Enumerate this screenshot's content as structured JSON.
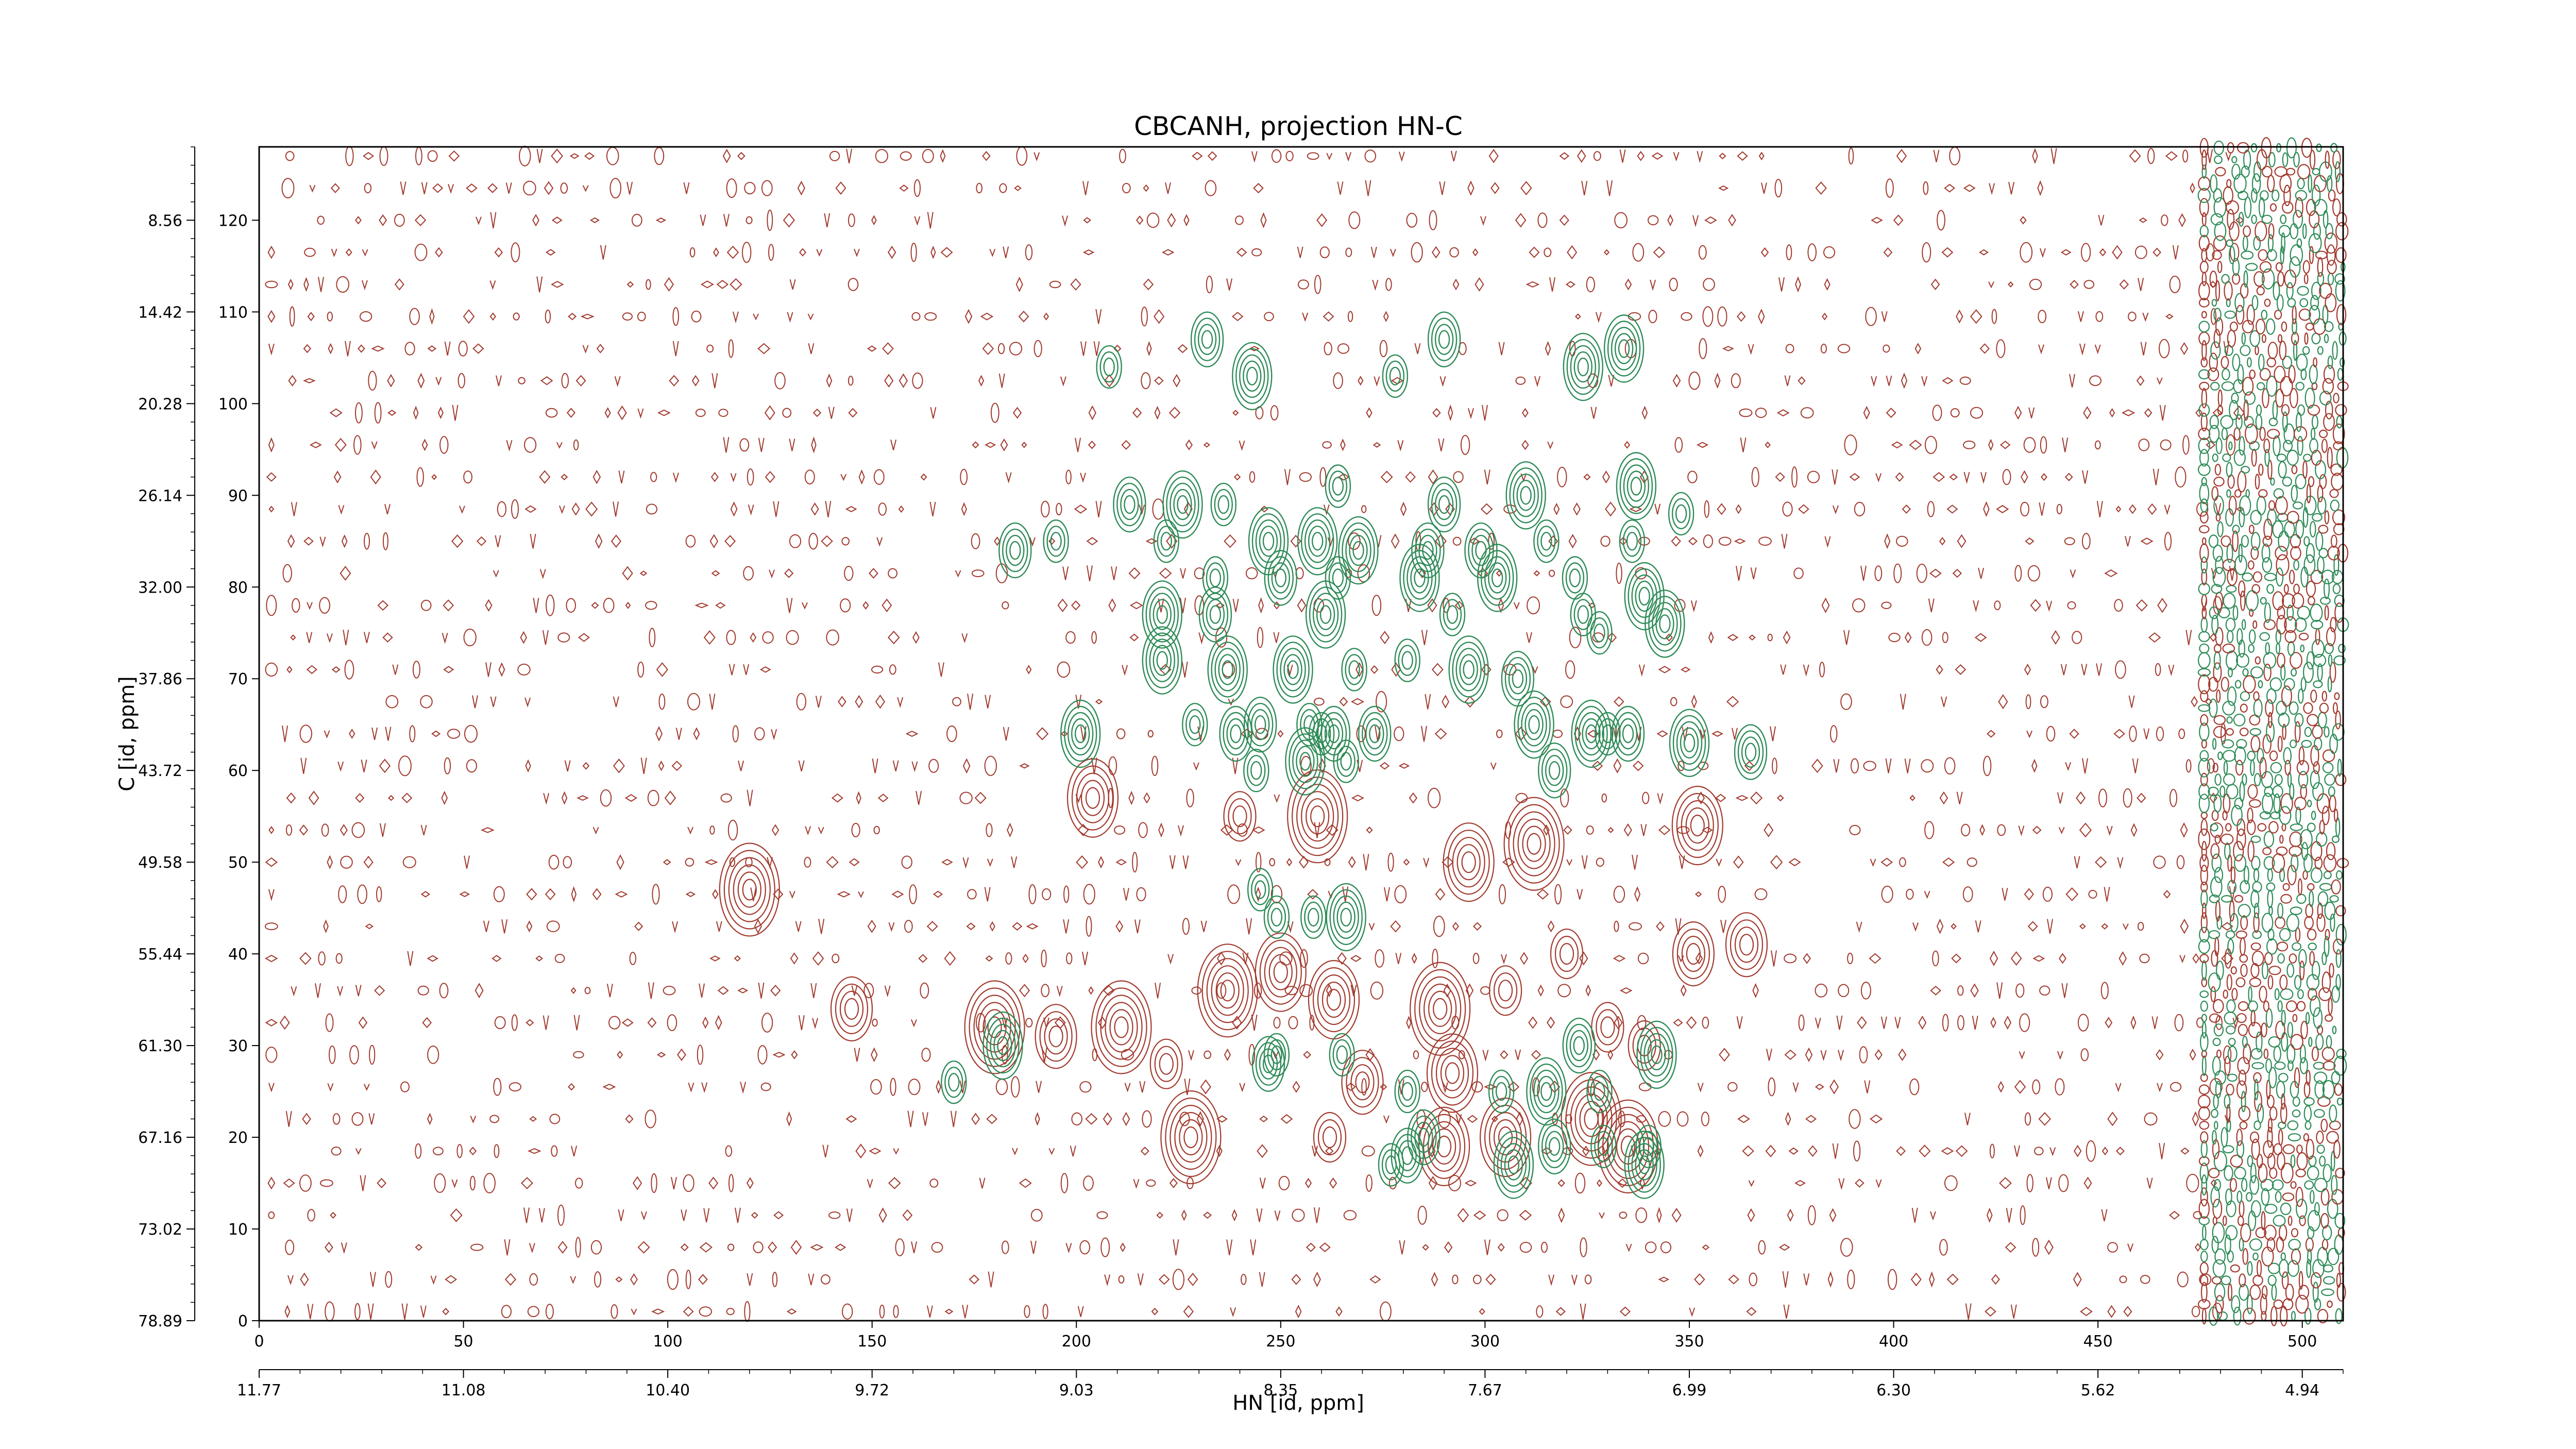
{
  "chart_data": {
    "type": "contour",
    "title": "CBCANH, projection HN-C",
    "xlabel": "HN [id, ppm]",
    "ylabel": "C [id, ppm]",
    "xlim": [
      0,
      510
    ],
    "ylim": [
      0,
      128
    ],
    "x_index_ticks": [
      "0",
      "50",
      "100",
      "150",
      "200",
      "250",
      "300",
      "350",
      "400",
      "450",
      "500"
    ],
    "x_index_tick_values": [
      0,
      50,
      100,
      150,
      200,
      250,
      300,
      350,
      400,
      450,
      500
    ],
    "x_ppm_ticks": [
      "11.77",
      "11.08",
      "10.40",
      "9.72",
      "9.03",
      "8.35",
      "7.67",
      "6.99",
      "6.30",
      "5.62",
      "4.94"
    ],
    "x_ppm_tick_values": [
      0,
      50,
      100,
      150,
      200,
      250,
      300,
      350,
      400,
      450,
      500
    ],
    "y_index_ticks": [
      "0",
      "10",
      "20",
      "30",
      "40",
      "50",
      "60",
      "70",
      "80",
      "90",
      "100",
      "110",
      "120"
    ],
    "y_index_tick_values": [
      0,
      10,
      20,
      30,
      40,
      50,
      60,
      70,
      80,
      90,
      100,
      110,
      120
    ],
    "y_ppm_ticks": [
      "78.89",
      "73.02",
      "67.16",
      "61.30",
      "55.44",
      "49.58",
      "43.72",
      "37.86",
      "32.00",
      "26.14",
      "20.28",
      "14.42",
      "8.56"
    ],
    "y_ppm_tick_values": [
      0,
      10,
      20,
      30,
      40,
      50,
      60,
      70,
      80,
      90,
      100,
      110,
      120
    ],
    "grid": false,
    "legend": "none",
    "colors": {
      "positive": "#a23a2e",
      "negative": "#2e8b57"
    },
    "negative_peaks": [
      [
        208,
        104
      ],
      [
        232,
        107
      ],
      [
        243,
        103
      ],
      [
        278,
        103
      ],
      [
        290,
        107
      ],
      [
        324,
        104
      ],
      [
        334,
        106
      ],
      [
        213,
        89
      ],
      [
        226,
        89
      ],
      [
        236,
        89
      ],
      [
        264,
        91
      ],
      [
        290,
        89
      ],
      [
        310,
        90
      ],
      [
        337,
        91
      ],
      [
        348,
        88
      ],
      [
        185,
        84
      ],
      [
        195,
        85
      ],
      [
        222,
        85
      ],
      [
        247,
        85
      ],
      [
        259,
        85
      ],
      [
        269,
        84
      ],
      [
        286,
        84
      ],
      [
        299,
        84
      ],
      [
        315,
        85
      ],
      [
        336,
        85
      ],
      [
        234,
        81
      ],
      [
        250,
        81
      ],
      [
        264,
        81
      ],
      [
        284,
        81
      ],
      [
        303,
        81
      ],
      [
        322,
        81
      ],
      [
        339,
        79
      ],
      [
        221,
        77
      ],
      [
        234,
        77
      ],
      [
        261,
        77
      ],
      [
        292,
        77
      ],
      [
        324,
        77
      ],
      [
        328,
        75
      ],
      [
        344,
        76
      ],
      [
        221,
        72
      ],
      [
        237,
        71
      ],
      [
        253,
        71
      ],
      [
        268,
        71
      ],
      [
        281,
        72
      ],
      [
        296,
        71
      ],
      [
        308,
        70
      ],
      [
        229,
        65
      ],
      [
        245,
        65
      ],
      [
        257,
        65
      ],
      [
        263,
        64
      ],
      [
        273,
        64
      ],
      [
        312,
        65
      ],
      [
        326,
        64
      ],
      [
        335,
        64
      ],
      [
        201,
        64
      ],
      [
        239,
        64
      ],
      [
        260,
        64
      ],
      [
        330,
        64
      ],
      [
        350,
        63
      ],
      [
        365,
        62
      ],
      [
        244,
        60
      ],
      [
        256,
        61
      ],
      [
        266,
        61
      ],
      [
        317,
        60
      ],
      [
        245,
        47
      ],
      [
        249,
        44
      ],
      [
        258,
        44
      ],
      [
        266,
        44
      ],
      [
        182,
        30
      ],
      [
        249,
        29
      ],
      [
        265,
        29
      ],
      [
        323,
        30
      ],
      [
        342,
        29
      ],
      [
        170,
        26
      ],
      [
        247,
        28
      ],
      [
        281,
        25
      ],
      [
        304,
        25
      ],
      [
        315,
        25
      ],
      [
        328,
        25
      ],
      [
        285,
        20
      ],
      [
        317,
        19
      ],
      [
        329,
        19
      ],
      [
        340,
        19
      ],
      [
        277,
        17
      ],
      [
        281,
        18
      ],
      [
        307,
        17
      ],
      [
        339,
        17
      ]
    ]
  }
}
